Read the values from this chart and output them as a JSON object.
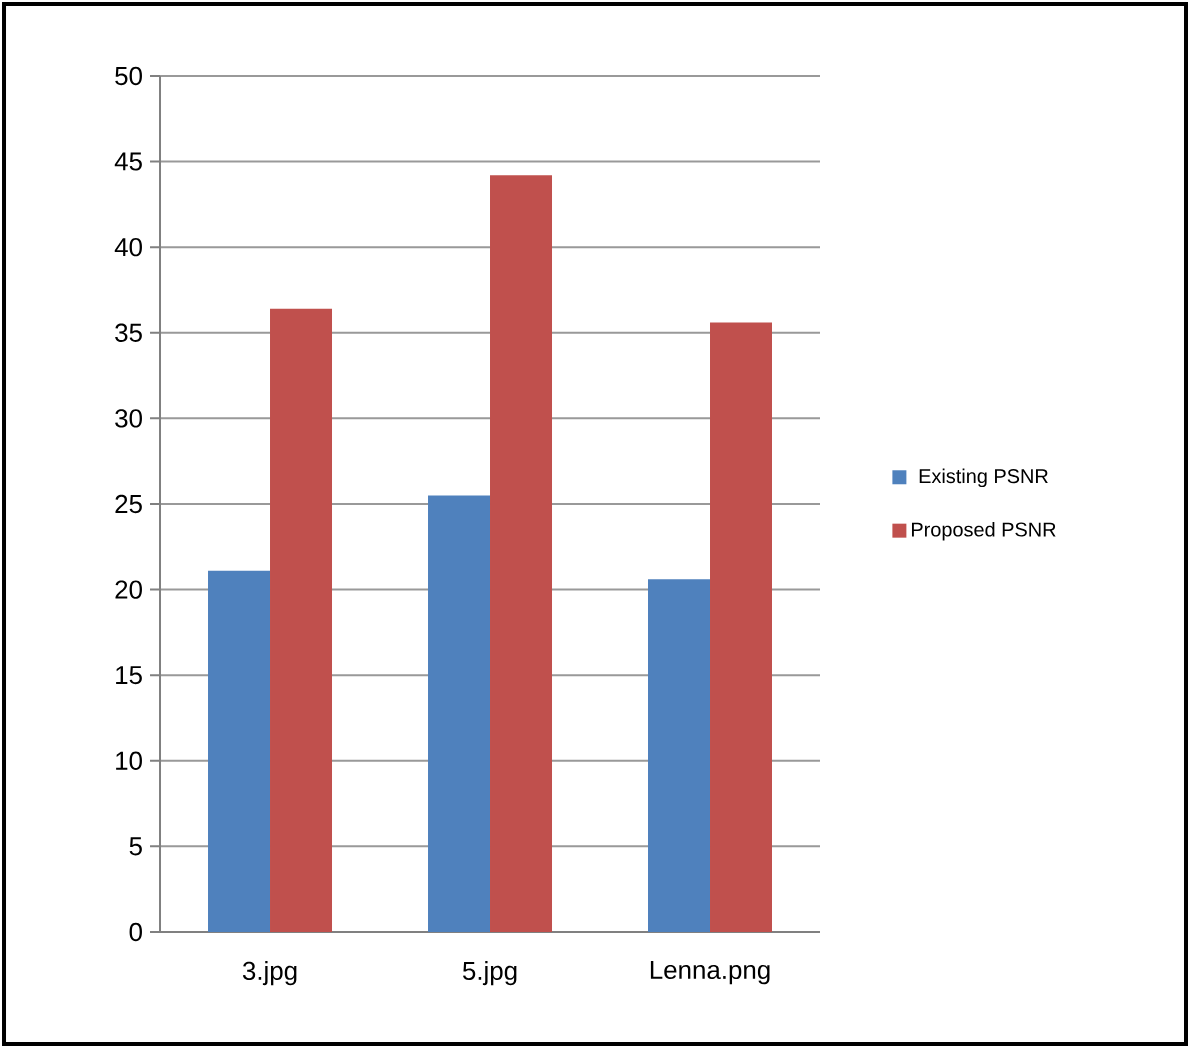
{
  "chart_data": {
    "type": "bar",
    "categories": [
      "3.jpg",
      "5.jpg",
      "Lenna.png"
    ],
    "series": [
      {
        "name": "Existing PSNR",
        "color": "#4f81bd",
        "values": [
          21.1,
          25.5,
          20.6
        ]
      },
      {
        "name": "Proposed PSNR",
        "color": "#c0504d",
        "values": [
          36.4,
          44.2,
          35.6
        ]
      }
    ],
    "ylim": [
      0,
      50
    ],
    "yticks": [
      0,
      5,
      10,
      15,
      20,
      25,
      30,
      35,
      40,
      45,
      50
    ],
    "grid": "y",
    "legend": "right"
  }
}
